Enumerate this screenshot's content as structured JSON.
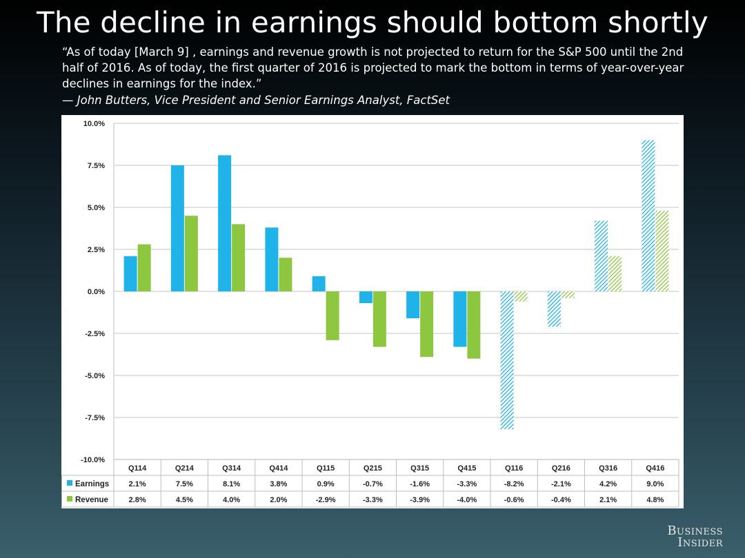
{
  "slide": {
    "title": "The decline in earnings should bottom shortly",
    "quote": "“As of today [March 9] , earnings and revenue growth is not projected to return for the S&P 500 until the 2nd half of 2016. As of today, the first quarter of 2016 is projected to mark the bottom in terms of year-over-year declines in earnings for the index.”",
    "attribution": "— John Butters, Vice President and Senior Earnings Analyst, FactSet"
  },
  "logo": {
    "line1": "Business",
    "line2": "Insider"
  },
  "colors": {
    "earnings": "#1fb3ea",
    "revenue": "#8dc63f",
    "grid": "#cfcfcf"
  },
  "chart_data": {
    "type": "bar",
    "title": "",
    "xlabel": "",
    "ylabel": "",
    "ylim": [
      -10,
      10
    ],
    "yticks": [
      "10.0%",
      "7.5%",
      "5.0%",
      "2.5%",
      "0.0%",
      "-2.5%",
      "-5.0%",
      "-7.5%",
      "-10.0%"
    ],
    "ytick_values": [
      10,
      7.5,
      5,
      2.5,
      0,
      -2.5,
      -5,
      -7.5,
      -10
    ],
    "categories": [
      "Q114",
      "Q214",
      "Q314",
      "Q414",
      "Q115",
      "Q215",
      "Q315",
      "Q415",
      "Q116",
      "Q216",
      "Q316",
      "Q416"
    ],
    "projected_from_index": 8,
    "series": [
      {
        "name": "Earnings",
        "values": [
          2.1,
          7.5,
          8.1,
          3.8,
          0.9,
          -0.7,
          -1.6,
          -3.3,
          -8.2,
          -2.1,
          4.2,
          9.0
        ],
        "labels": [
          "2.1%",
          "7.5%",
          "8.1%",
          "3.8%",
          "0.9%",
          "-0.7%",
          "-1.6%",
          "-3.3%",
          "-8.2%",
          "-2.1%",
          "4.2%",
          "9.0%"
        ]
      },
      {
        "name": "Revenue",
        "values": [
          2.8,
          4.5,
          4.0,
          2.0,
          -2.9,
          -3.3,
          -3.9,
          -4.0,
          -0.6,
          -0.4,
          2.1,
          4.8
        ],
        "labels": [
          "2.8%",
          "4.5%",
          "4.0%",
          "2.0%",
          "-2.9%",
          "-3.3%",
          "-3.9%",
          "-4.0%",
          "-0.6%",
          "-0.4%",
          "2.1%",
          "4.8%"
        ]
      }
    ]
  }
}
